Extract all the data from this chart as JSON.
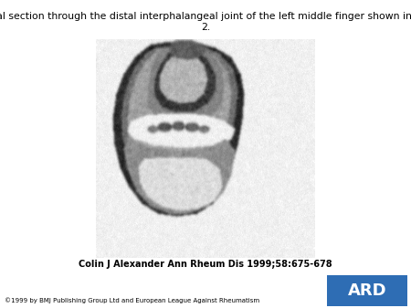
{
  "title_line1": "Coronal section through the distal interphalangeal joint of the left middle finger shown in figure",
  "title_line2": "2.",
  "citation": "Colin J Alexander Ann Rheum Dis 1999;58:675-678",
  "copyright": "©1999 by BMJ Publishing Group Ltd and European League Against Rheumatism",
  "ard_text": "ARD",
  "ard_box_color": "#2e6db4",
  "ard_text_color": "#ffffff",
  "background_color": "#ffffff",
  "title_fontsize": 7.8,
  "citation_fontsize": 7.0,
  "copyright_fontsize": 5.0,
  "ard_fontsize": 13
}
